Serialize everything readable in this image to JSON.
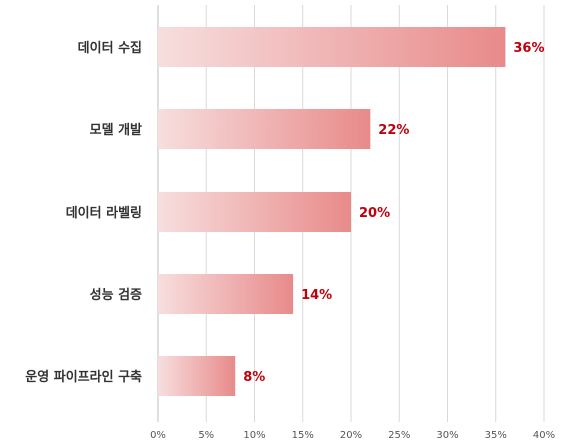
{
  "chart_data": {
    "type": "bar",
    "orientation": "horizontal",
    "categories": [
      "데이터 수집",
      "모델 개발",
      "데이터 라벨링",
      "성능 검증",
      "운영 파이프라인 구축"
    ],
    "values": [
      36,
      22,
      20,
      14,
      8
    ],
    "value_labels": [
      "36%",
      "22%",
      "20%",
      "14%",
      "8%"
    ],
    "x_ticks": [
      0,
      5,
      10,
      15,
      20,
      25,
      30,
      35,
      40
    ],
    "x_tick_labels": [
      "0%",
      "5%",
      "10%",
      "15%",
      "20%",
      "25%",
      "30%",
      "35%",
      "40%"
    ],
    "xlim": [
      0,
      40
    ],
    "title": "",
    "xlabel": "",
    "ylabel": "",
    "grid": "vertical",
    "legend": "none",
    "colors": {
      "bar_gradient_start": "#f7dede",
      "bar_gradient_end": "#e88a8a",
      "value_label": "#c0000d",
      "grid": "#d9d9d9",
      "axis": "#bfbfbf"
    }
  }
}
